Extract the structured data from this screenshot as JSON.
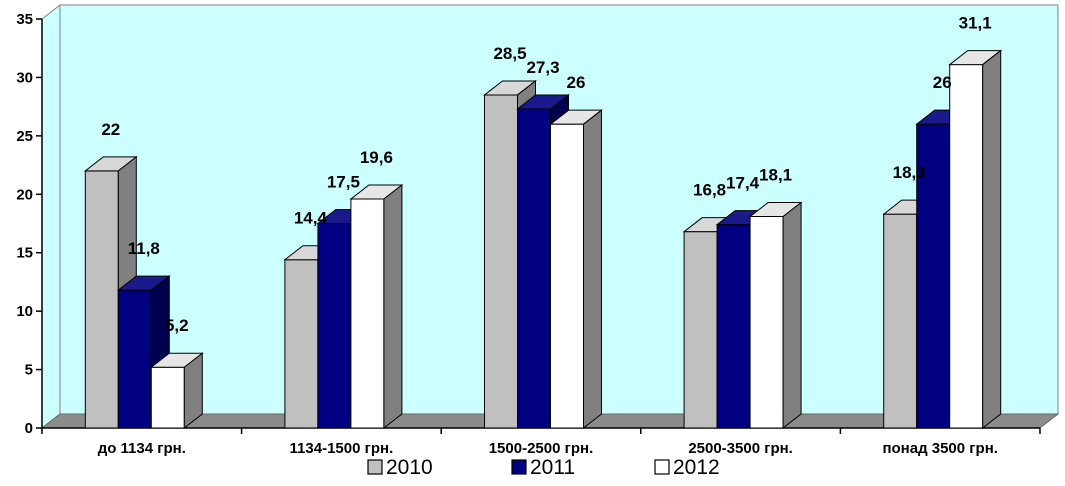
{
  "chart_data": {
    "type": "bar",
    "categories": [
      "до 1134 грн.",
      "1134-1500 грн.",
      "1500-2500 грн.",
      "2500-3500 грн.",
      "понад 3500 грн."
    ],
    "series": [
      {
        "name": "2010",
        "values": [
          22,
          14.4,
          28.5,
          16.8,
          18.3
        ],
        "labels": [
          "22",
          "14,4",
          "28,5",
          "16,8",
          "18,3"
        ]
      },
      {
        "name": "2011",
        "values": [
          11.8,
          17.5,
          27.3,
          17.4,
          26
        ],
        "labels": [
          "11,8",
          "17,5",
          "27,3",
          "17,4",
          "26"
        ]
      },
      {
        "name": "2012",
        "values": [
          5.2,
          19.6,
          26,
          18.1,
          31.1
        ],
        "labels": [
          "5,2",
          "19,6",
          "26",
          "18,1",
          "31,1"
        ]
      }
    ],
    "y_ticks": [
      "0",
      "5",
      "10",
      "15",
      "20",
      "25",
      "30",
      "35"
    ],
    "ylim": [
      0,
      35
    ],
    "legend_position": "bottom",
    "grid": false
  },
  "colors": {
    "plot_background": "#ccffff",
    "floor": "#8c8c8c",
    "series": [
      {
        "front": "#c0c0c0",
        "top": "#d8d8d8",
        "side": "#808080"
      },
      {
        "front": "#000080",
        "top": "#1a1a8c",
        "side": "#000050"
      },
      {
        "front": "#ffffff",
        "top": "#e6e6e6",
        "side": "#808080"
      }
    ]
  }
}
